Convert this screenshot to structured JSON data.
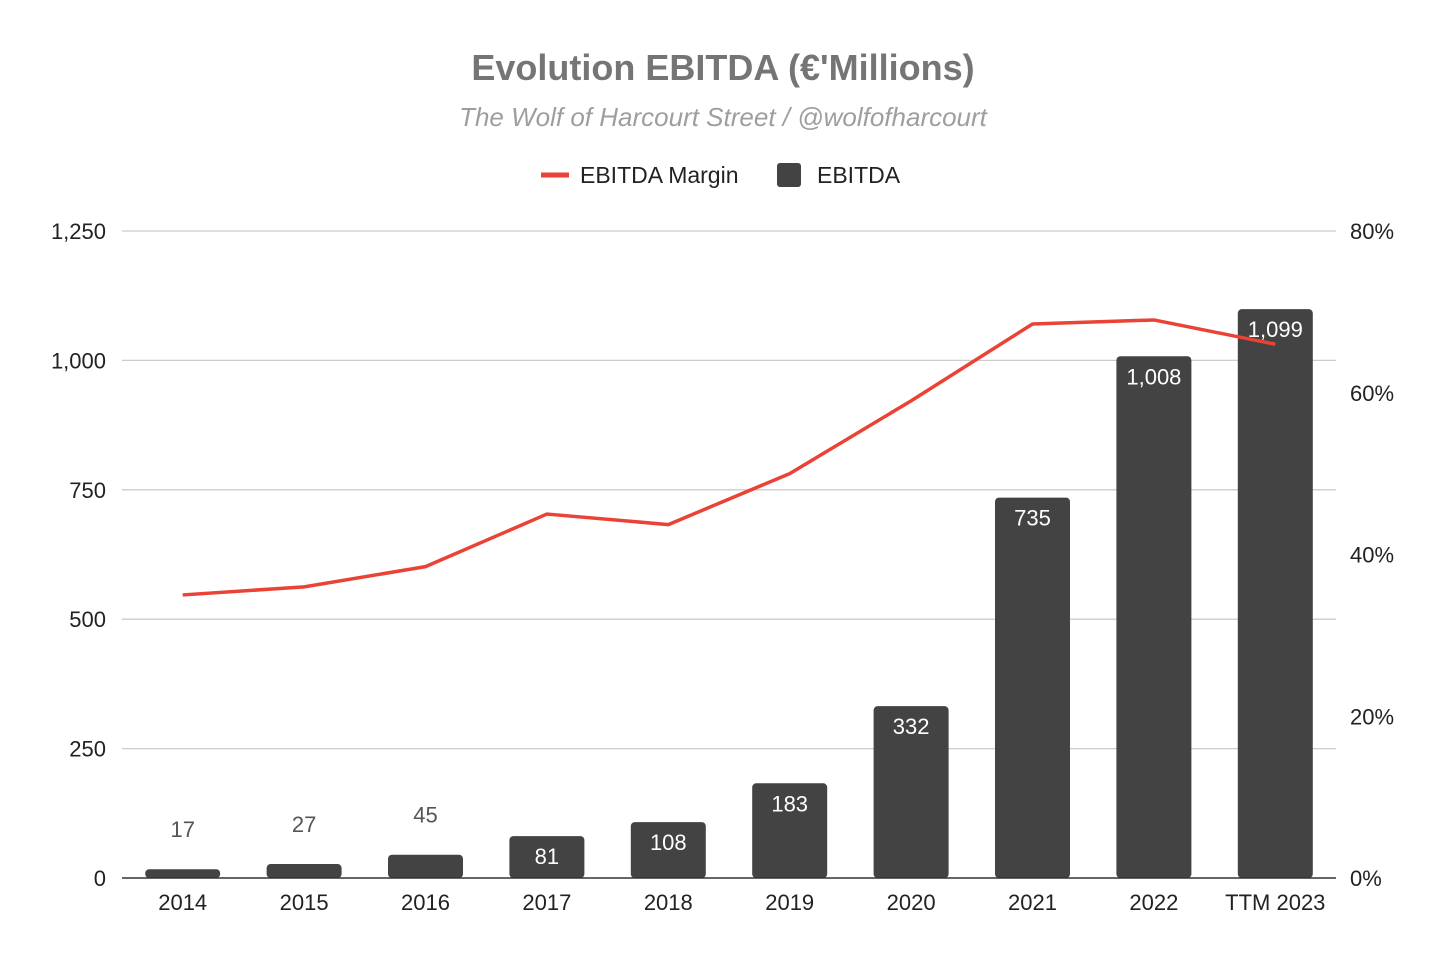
{
  "chart_data": {
    "type": "bar",
    "title": "Evolution EBITDA (€'Millions)",
    "subtitle": "The Wolf of Harcourt Street / @wolfofharcourt",
    "categories": [
      "2014",
      "2015",
      "2016",
      "2017",
      "2018",
      "2019",
      "2020",
      "2021",
      "2022",
      "TTM 2023"
    ],
    "series": [
      {
        "name": "EBITDA",
        "type": "bar",
        "axis": "left",
        "values": [
          17,
          27,
          45,
          81,
          108,
          183,
          332,
          735,
          1008,
          1099
        ],
        "labels": [
          "17",
          "27",
          "45",
          "81",
          "108",
          "183",
          "332",
          "735",
          "1,008",
          "1,099"
        ]
      },
      {
        "name": "EBITDA Margin",
        "type": "line",
        "axis": "right",
        "values": [
          0.35,
          0.36,
          0.385,
          0.45,
          0.437,
          0.5,
          0.59,
          0.685,
          0.69,
          0.66
        ]
      }
    ],
    "y_left": {
      "min": 0,
      "max": 1250,
      "ticks": [
        0,
        250,
        500,
        750,
        1000,
        1250
      ],
      "tick_labels": [
        "0",
        "250",
        "500",
        "750",
        "1,000",
        "1,250"
      ]
    },
    "y_right": {
      "min": 0,
      "max": 0.8,
      "ticks": [
        0,
        0.2,
        0.4,
        0.6,
        0.8
      ],
      "tick_labels": [
        "0%",
        "20%",
        "40%",
        "60%",
        "80%"
      ]
    },
    "legend": {
      "position": "top",
      "items": [
        "EBITDA Margin",
        "EBITDA"
      ]
    },
    "grid": true,
    "colors": {
      "bar": "#434343",
      "line": "#ea4335",
      "grid": "#cccccc"
    }
  }
}
